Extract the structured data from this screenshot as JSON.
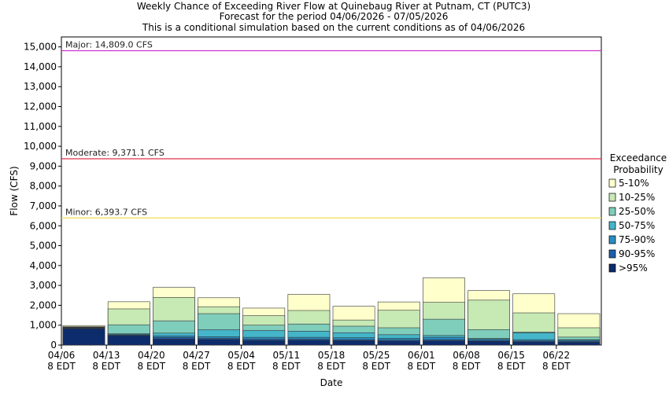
{
  "chart_data": {
    "type": "bar",
    "title_lines": [
      "Weekly Chance of Exceeding River Flow at Quinebaug River at Putnam, CT (PUTC3)",
      "Forecast for the period 04/06/2026 - 07/05/2026",
      "This is a conditional simulation based on the current conditions as of 04/06/2026"
    ],
    "xlabel": "Date",
    "ylabel": "Flow (CFS)",
    "ylim": [
      0,
      15500
    ],
    "yticks": [
      "0",
      "1,000",
      "2,000",
      "3,000",
      "4,000",
      "5,000",
      "6,000",
      "7,000",
      "8,000",
      "9,000",
      "10,000",
      "11,000",
      "12,000",
      "13,000",
      "14,000",
      "15,000"
    ],
    "ytick_values": [
      0,
      1000,
      2000,
      3000,
      4000,
      5000,
      6000,
      7000,
      8000,
      9000,
      10000,
      11000,
      12000,
      13000,
      14000,
      15000
    ],
    "categories": [
      "04/06",
      "04/13",
      "04/20",
      "04/27",
      "05/04",
      "05/11",
      "05/18",
      "05/25",
      "06/01",
      "06/08",
      "06/15",
      "06/22"
    ],
    "category_sublabel": "8 EDT",
    "legend": {
      "title_lines": [
        "Exceedance",
        "Probability"
      ],
      "position": "right"
    },
    "series": [
      {
        "name": ">95%",
        "color": "#0d2c6c",
        "values": [
          820,
          470,
          300,
          280,
          230,
          240,
          220,
          200,
          210,
          190,
          160,
          140
        ]
      },
      {
        "name": "90-95%",
        "color": "#1f5ea8",
        "values": [
          850,
          500,
          380,
          330,
          290,
          290,
          270,
          250,
          270,
          230,
          200,
          180
        ]
      },
      {
        "name": "75-90%",
        "color": "#2a8cc0",
        "values": [
          860,
          530,
          460,
          420,
          390,
          390,
          370,
          340,
          390,
          300,
          270,
          240
        ]
      },
      {
        "name": "50-75%",
        "color": "#45b5c9",
        "values": [
          880,
          570,
          600,
          770,
          730,
          700,
          620,
          520,
          480,
          330,
          620,
          270
        ]
      },
      {
        "name": "25-50%",
        "color": "#7fcdbb",
        "values": [
          900,
          1020,
          1220,
          1580,
          1000,
          1060,
          950,
          870,
          1300,
          780,
          650,
          400
        ]
      },
      {
        "name": "10-25%",
        "color": "#c7e9b4",
        "values": [
          920,
          1820,
          2400,
          1930,
          1480,
          1740,
          1260,
          1750,
          2150,
          2260,
          1620,
          870
        ]
      },
      {
        "name": "5-10%",
        "color": "#ffffcc",
        "values": [
          980,
          2180,
          2900,
          2380,
          1860,
          2550,
          1950,
          2170,
          3380,
          2740,
          2580,
          1580
        ]
      }
    ],
    "reference_lines": [
      {
        "label": "Major: 14,809.0 CFS",
        "value": 14809.0,
        "color": "#cc33cc"
      },
      {
        "label": "Moderate: 9,371.1 CFS",
        "value": 9371.1,
        "color": "#e0304a"
      },
      {
        "label": "Minor: 6,393.7 CFS",
        "value": 6393.7,
        "color": "#f0e060"
      }
    ],
    "grid": false
  }
}
